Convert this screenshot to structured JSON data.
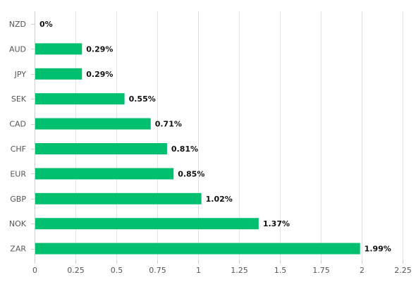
{
  "chart_data": {
    "type": "bar",
    "orientation": "horizontal",
    "categories": [
      "NZD",
      "AUD",
      "JPY",
      "SEK",
      "CAD",
      "CHF",
      "EUR",
      "GBP",
      "NOK",
      "ZAR"
    ],
    "values": [
      0,
      0.29,
      0.29,
      0.55,
      0.71,
      0.81,
      0.85,
      1.02,
      1.37,
      1.99
    ],
    "value_labels": [
      "0%",
      "0.29%",
      "0.29%",
      "0.55%",
      "0.71%",
      "0.81%",
      "0.85%",
      "1.02%",
      "1.37%",
      "1.99%"
    ],
    "x_ticks": [
      "0",
      "0.25",
      "0.5",
      "0.75",
      "1",
      "1.25",
      "1.5",
      "1.75",
      "2",
      "2.25"
    ],
    "xlim": [
      0,
      2.25
    ],
    "title": "",
    "xlabel": "",
    "ylabel": "",
    "grid": true,
    "legend": "none",
    "bar_color": "#00bf6f"
  }
}
